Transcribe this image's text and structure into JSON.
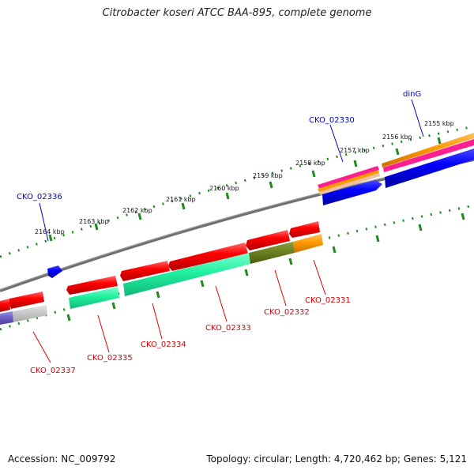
{
  "title": "Citrobacter koseri ATCC BAA-895, complete genome",
  "footer": {
    "accession": "Accession: NC_009792",
    "topology": "Topology: circular; Length: 4,720,462 bp; Genes: 5,121"
  },
  "colors": {
    "forward_label": "#0000cc",
    "reverse_label": "#dd0000",
    "backbone": "#808080",
    "tick": "#1f8a1f"
  },
  "scale_labels": [
    "2164 kbp",
    "2163 kbp",
    "2162 kbp",
    "2161 kbp",
    "2160 kbp",
    "2159 kbp",
    "2158 kbp",
    "2157 kbp",
    "2156 kbp",
    "2155 kbp"
  ],
  "gene_labels": {
    "forward": [
      "CKO_02336",
      "CKO_02330",
      "dinG"
    ],
    "reverse": [
      "CKO_02337",
      "CKO_02335",
      "CKO_02334",
      "CKO_02333",
      "CKO_02332",
      "CKO_02331"
    ]
  }
}
